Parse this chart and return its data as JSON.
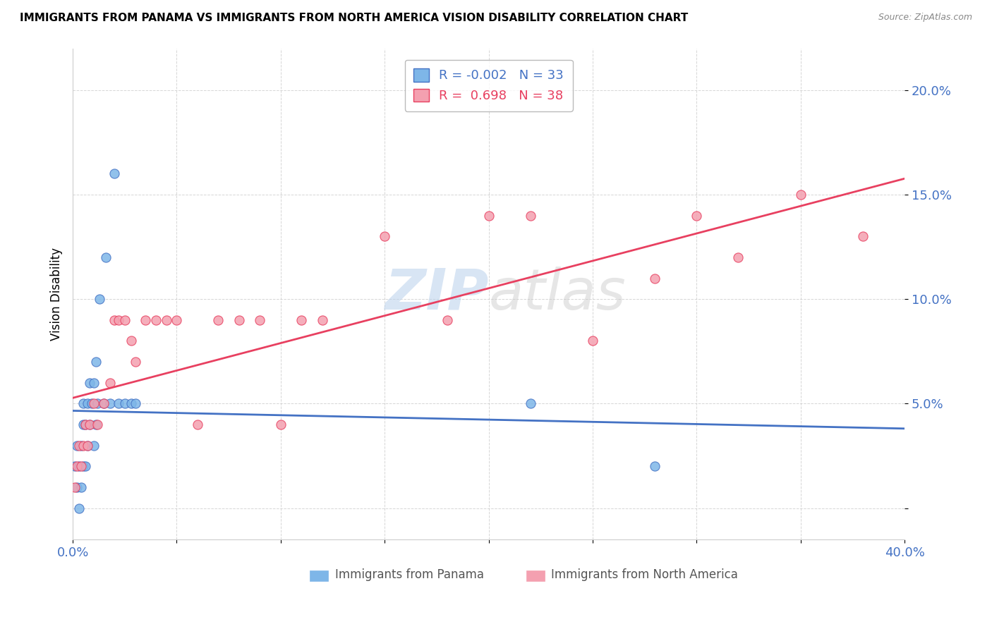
{
  "title": "IMMIGRANTS FROM PANAMA VS IMMIGRANTS FROM NORTH AMERICA VISION DISABILITY CORRELATION CHART",
  "source": "Source: ZipAtlas.com",
  "xlabel_blue": "Immigrants from Panama",
  "xlabel_pink": "Immigrants from North America",
  "ylabel": "Vision Disability",
  "xlim": [
    0.0,
    0.4
  ],
  "ylim": [
    -0.015,
    0.22
  ],
  "yticks": [
    0.0,
    0.05,
    0.1,
    0.15,
    0.2
  ],
  "ytick_labels": [
    "",
    "5.0%",
    "10.0%",
    "15.0%",
    "20.0%"
  ],
  "xticks": [
    0.0,
    0.05,
    0.1,
    0.15,
    0.2,
    0.25,
    0.3,
    0.35,
    0.4
  ],
  "xtick_labels": [
    "0.0%",
    "",
    "",
    "",
    "",
    "",
    "",
    "",
    "40.0%"
  ],
  "blue_R": -0.002,
  "blue_N": 33,
  "pink_R": 0.698,
  "pink_N": 38,
  "blue_color": "#7EB6E8",
  "pink_color": "#F4A0B0",
  "trend_blue": "#4472C4",
  "trend_pink": "#E84060",
  "watermark_zip": "ZIP",
  "watermark_atlas": "atlas",
  "blue_x": [
    0.001,
    0.002,
    0.002,
    0.003,
    0.003,
    0.004,
    0.004,
    0.005,
    0.005,
    0.005,
    0.006,
    0.006,
    0.007,
    0.007,
    0.008,
    0.008,
    0.009,
    0.01,
    0.01,
    0.011,
    0.011,
    0.012,
    0.013,
    0.015,
    0.016,
    0.018,
    0.02,
    0.022,
    0.025,
    0.028,
    0.03,
    0.22,
    0.28
  ],
  "blue_y": [
    0.02,
    0.01,
    0.03,
    0.0,
    0.02,
    0.01,
    0.03,
    0.02,
    0.04,
    0.05,
    0.02,
    0.04,
    0.03,
    0.05,
    0.04,
    0.06,
    0.05,
    0.03,
    0.06,
    0.04,
    0.07,
    0.05,
    0.1,
    0.05,
    0.12,
    0.05,
    0.16,
    0.05,
    0.05,
    0.05,
    0.05,
    0.05,
    0.02
  ],
  "pink_x": [
    0.001,
    0.002,
    0.003,
    0.004,
    0.005,
    0.006,
    0.007,
    0.008,
    0.01,
    0.012,
    0.015,
    0.018,
    0.02,
    0.022,
    0.025,
    0.028,
    0.03,
    0.035,
    0.04,
    0.045,
    0.05,
    0.06,
    0.07,
    0.08,
    0.09,
    0.1,
    0.11,
    0.12,
    0.15,
    0.18,
    0.2,
    0.22,
    0.25,
    0.28,
    0.3,
    0.32,
    0.35,
    0.38
  ],
  "pink_y": [
    0.01,
    0.02,
    0.03,
    0.02,
    0.03,
    0.04,
    0.03,
    0.04,
    0.05,
    0.04,
    0.05,
    0.06,
    0.09,
    0.09,
    0.09,
    0.08,
    0.07,
    0.09,
    0.09,
    0.09,
    0.09,
    0.04,
    0.09,
    0.09,
    0.09,
    0.04,
    0.09,
    0.09,
    0.13,
    0.09,
    0.14,
    0.14,
    0.08,
    0.11,
    0.14,
    0.12,
    0.15,
    0.13
  ],
  "background_color": "#FFFFFF",
  "grid_color": "#CCCCCC"
}
